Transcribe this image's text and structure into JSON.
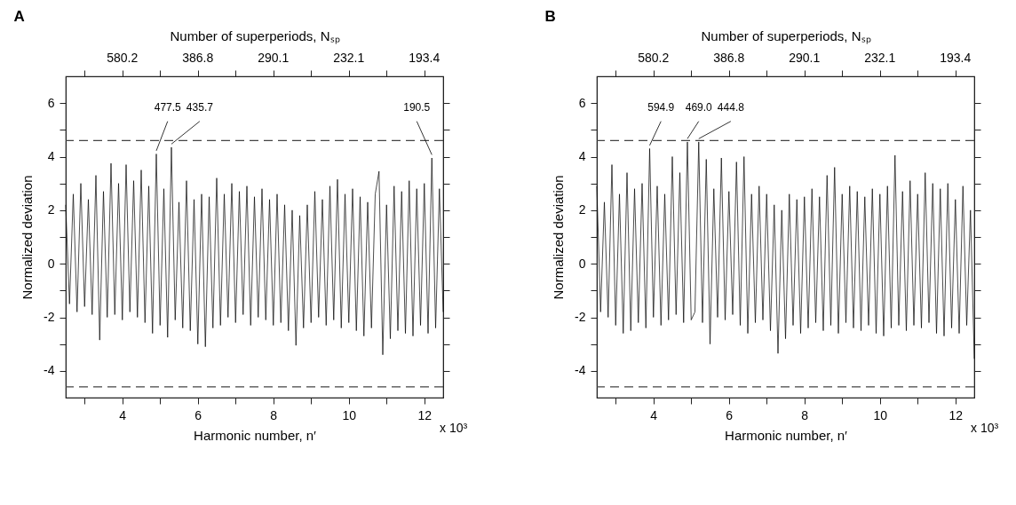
{
  "chart_data": [
    {
      "type": "line",
      "title": "A",
      "xlabel": "Harmonic number, n′",
      "ylabel": "Normalized deviation",
      "x2label": "Number of superperiods, Nₛₚ",
      "xlim": [
        2.5,
        12.5
      ],
      "ylim": [
        -5,
        7
      ],
      "xticks": [
        {
          "value": 3,
          "label": null
        },
        4,
        {
          "value": 5,
          "label": null
        },
        6,
        {
          "value": 7,
          "label": null
        },
        8,
        {
          "value": 9,
          "label": null
        },
        10,
        {
          "value": 11,
          "label": null
        },
        12
      ],
      "yticks": [
        -4,
        {
          "value": -3,
          "label": null
        },
        -2,
        {
          "value": -1,
          "label": null
        },
        0,
        {
          "value": 1,
          "label": null
        },
        2,
        {
          "value": 3,
          "label": null
        },
        4,
        {
          "value": 5,
          "label": null
        },
        6
      ],
      "grid": false,
      "line_style": "solid",
      "x": [
        2.5,
        2.6,
        2.7,
        2.8,
        2.9,
        3.0,
        3.1,
        3.2,
        3.3,
        3.4,
        3.5,
        3.6,
        3.7,
        3.8,
        3.9,
        4.0,
        4.1,
        4.2,
        4.3,
        4.4,
        4.5,
        4.6,
        4.7,
        4.8,
        4.9,
        5.0,
        5.1,
        5.2,
        5.3,
        5.4,
        5.5,
        5.6,
        5.7,
        5.8,
        5.9,
        6.0,
        6.1,
        6.2,
        6.3,
        6.4,
        6.5,
        6.6,
        6.7,
        6.8,
        6.9,
        7.0,
        7.1,
        7.2,
        7.3,
        7.4,
        7.5,
        7.6,
        7.7,
        7.8,
        7.9,
        8.0,
        8.1,
        8.2,
        8.3,
        8.4,
        8.5,
        8.6,
        8.7,
        8.8,
        8.9,
        9.0,
        9.1,
        9.2,
        9.3,
        9.4,
        9.5,
        9.6,
        9.7,
        9.8,
        9.9,
        10.0,
        10.1,
        10.2,
        10.3,
        10.4,
        10.5,
        10.6,
        10.7,
        10.8,
        10.9,
        11.0,
        11.1,
        11.2,
        11.3,
        11.4,
        11.5,
        11.6,
        11.7,
        11.8,
        11.9,
        12.0,
        12.1,
        12.2,
        12.3,
        12.4,
        12.5
      ],
      "series": [
        {
          "color": "#000000",
          "values": [
            2.2,
            -1.5,
            2.6,
            -1.8,
            3.0,
            -1.6,
            2.4,
            -1.9,
            3.3,
            -2.85,
            2.7,
            -2.0,
            3.75,
            -1.9,
            3.0,
            -2.1,
            3.7,
            -1.8,
            3.1,
            -2.0,
            3.5,
            -2.2,
            2.9,
            -2.6,
            4.1,
            -2.3,
            2.8,
            -2.75,
            4.35,
            -2.1,
            2.3,
            -2.4,
            3.1,
            -2.5,
            2.4,
            -3.0,
            2.6,
            -3.1,
            2.5,
            -2.4,
            3.2,
            -2.3,
            2.6,
            -2.0,
            3.0,
            -2.2,
            2.7,
            -1.9,
            2.9,
            -2.3,
            2.5,
            -2.0,
            2.8,
            -2.1,
            2.4,
            -2.3,
            2.6,
            -2.2,
            2.2,
            -2.5,
            2.0,
            -3.05,
            1.8,
            -2.4,
            2.2,
            -2.2,
            2.7,
            -2.0,
            2.4,
            -2.3,
            2.9,
            -2.1,
            3.15,
            -2.4,
            2.6,
            -2.2,
            2.8,
            -2.5,
            2.5,
            -2.7,
            2.3,
            -2.4,
            2.6,
            3.45,
            -3.4,
            2.2,
            -2.8,
            2.9,
            -2.5,
            2.7,
            -2.6,
            3.1,
            -2.7,
            2.8,
            -2.3,
            3.0,
            -2.6,
            3.95,
            -2.4,
            2.8,
            -1.8
          ]
        }
      ],
      "ref_lines": [
        {
          "axis": "y",
          "value": 4.6,
          "color": "#444444",
          "line_style": "dashed"
        },
        {
          "axis": "y",
          "value": -4.6,
          "color": "#444444",
          "line_style": "dashed"
        }
      ],
      "annotations": [
        {
          "text": "580.2",
          "x": 4
        },
        {
          "text": "386.8",
          "x": 6
        },
        {
          "text": "290.1",
          "x": 8
        },
        {
          "text": "232.1",
          "x": 10
        },
        {
          "text": "193.4",
          "x": 12
        },
        {
          "text": "477.5",
          "x": 4.9,
          "y": 4.1
        },
        {
          "text": "435.7",
          "x": 5.3,
          "y": 4.35
        },
        {
          "text": "190.5",
          "x": 12.2,
          "y": 3.95
        },
        "x 10³"
      ]
    },
    {
      "type": "line",
      "title": "B",
      "xlabel": "Harmonic number, n′",
      "ylabel": "Normalized deviation",
      "x2label": "Number of superperiods, Nₛₚ",
      "xlim": [
        2.5,
        12.5
      ],
      "ylim": [
        -5,
        7
      ],
      "xticks": [
        {
          "value": 3,
          "label": null
        },
        4,
        {
          "value": 5,
          "label": null
        },
        6,
        {
          "value": 7,
          "label": null
        },
        8,
        {
          "value": 9,
          "label": null
        },
        10,
        {
          "value": 11,
          "label": null
        },
        12
      ],
      "yticks": [
        -4,
        {
          "value": -3,
          "label": null
        },
        -2,
        {
          "value": -1,
          "label": null
        },
        0,
        {
          "value": 1,
          "label": null
        },
        2,
        {
          "value": 3,
          "label": null
        },
        4,
        {
          "value": 5,
          "label": null
        },
        6
      ],
      "grid": false,
      "line_style": "solid",
      "x": [
        2.5,
        2.6,
        2.7,
        2.8,
        2.9,
        3.0,
        3.1,
        3.2,
        3.3,
        3.4,
        3.5,
        3.6,
        3.7,
        3.8,
        3.9,
        4.0,
        4.1,
        4.2,
        4.3,
        4.4,
        4.5,
        4.6,
        4.7,
        4.8,
        4.9,
        5.0,
        5.1,
        5.2,
        5.3,
        5.4,
        5.5,
        5.6,
        5.7,
        5.8,
        5.9,
        6.0,
        6.1,
        6.2,
        6.3,
        6.4,
        6.5,
        6.6,
        6.7,
        6.8,
        6.9,
        7.0,
        7.1,
        7.2,
        7.3,
        7.4,
        7.5,
        7.6,
        7.7,
        7.8,
        7.9,
        8.0,
        8.1,
        8.2,
        8.3,
        8.4,
        8.5,
        8.6,
        8.7,
        8.8,
        8.9,
        9.0,
        9.1,
        9.2,
        9.3,
        9.4,
        9.5,
        9.6,
        9.7,
        9.8,
        9.9,
        10.0,
        10.1,
        10.2,
        10.3,
        10.4,
        10.5,
        10.6,
        10.7,
        10.8,
        10.9,
        11.0,
        11.1,
        11.2,
        11.3,
        11.4,
        11.5,
        11.6,
        11.7,
        11.8,
        11.9,
        12.0,
        12.1,
        12.2,
        12.3,
        12.4,
        12.5
      ],
      "series": [
        {
          "color": "#000000",
          "values": [
            2.9,
            -1.8,
            2.3,
            -2.0,
            3.7,
            -2.3,
            2.6,
            -2.6,
            3.4,
            -2.5,
            2.8,
            -2.2,
            3.0,
            -2.4,
            4.3,
            -2.0,
            2.9,
            -2.3,
            2.6,
            -2.1,
            4.0,
            -1.9,
            3.4,
            -2.2,
            4.55,
            -2.1,
            -1.8,
            4.55,
            -2.2,
            3.9,
            -3.0,
            2.8,
            -2.0,
            3.95,
            -2.1,
            2.7,
            -1.9,
            3.8,
            -2.3,
            4.0,
            -2.6,
            2.6,
            -2.2,
            2.9,
            -2.1,
            2.6,
            -2.5,
            2.2,
            -3.35,
            2.0,
            -2.8,
            2.6,
            -2.3,
            2.4,
            -2.6,
            2.5,
            -2.4,
            2.8,
            -2.2,
            2.5,
            -2.5,
            3.3,
            -2.3,
            3.6,
            -2.6,
            2.6,
            -2.2,
            2.9,
            -2.4,
            2.7,
            -2.5,
            2.5,
            -2.3,
            2.8,
            -2.6,
            2.6,
            -2.7,
            2.9,
            -2.4,
            4.05,
            -2.3,
            2.7,
            -2.5,
            3.1,
            -2.3,
            2.6,
            -2.4,
            3.4,
            -2.2,
            3.0,
            -2.6,
            2.8,
            -2.7,
            3.0,
            -2.4,
            2.4,
            -2.6,
            2.9,
            -2.3,
            2.0,
            -3.55
          ]
        }
      ],
      "ref_lines": [
        {
          "axis": "y",
          "value": 4.6,
          "color": "#444444",
          "line_style": "dashed"
        },
        {
          "axis": "y",
          "value": -4.6,
          "color": "#444444",
          "line_style": "dashed"
        }
      ],
      "annotations": [
        {
          "text": "580.2",
          "x": 4
        },
        {
          "text": "386.8",
          "x": 6
        },
        {
          "text": "290.1",
          "x": 8
        },
        {
          "text": "232.1",
          "x": 10
        },
        {
          "text": "193.4",
          "x": 12
        },
        {
          "text": "594.9",
          "x": 3.9,
          "y": 4.3
        },
        {
          "text": "469.0",
          "x": 4.9,
          "y": 4.55
        },
        {
          "text": "444.8",
          "x": 5.2,
          "y": 4.55
        },
        "x 10³"
      ]
    }
  ]
}
